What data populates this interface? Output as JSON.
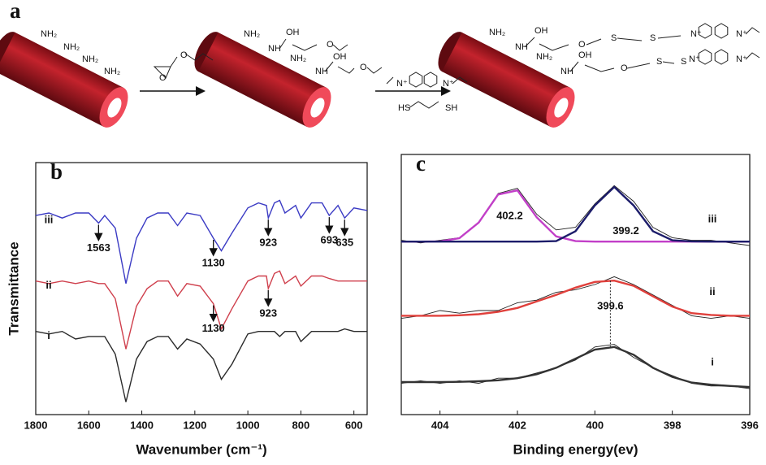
{
  "scheme": {
    "label": "a",
    "texts": [
      "NH₂",
      "NH₂",
      "NH₂",
      "NH₂",
      "O",
      "O",
      "NH₂",
      "NH",
      "OH",
      "O",
      "NH₂",
      "NH",
      "OH",
      "O",
      "N⁺",
      "N⁺",
      "HS",
      "SH",
      "NH₂",
      "NH",
      "OH",
      "O",
      "S",
      "S",
      "N⁺",
      "N⁺",
      "NH₂",
      "NH",
      "OH",
      "O",
      "S",
      "S",
      "N⁺",
      "N⁺"
    ]
  },
  "chart_data": [
    {
      "type": "line",
      "panel_label": "b",
      "x_label": "Wavenumber (cm⁻¹)",
      "y_label": "Transmittance",
      "xlim": [
        1800,
        550
      ],
      "xticks": [
        1800,
        1600,
        1400,
        1200,
        1000,
        800,
        600
      ],
      "ylim": [
        0,
        100
      ],
      "x": [
        1800,
        1750,
        1700,
        1650,
        1600,
        1563,
        1540,
        1500,
        1460,
        1420,
        1380,
        1340,
        1300,
        1265,
        1230,
        1180,
        1130,
        1100,
        1060,
        1000,
        960,
        930,
        923,
        900,
        880,
        860,
        820,
        800,
        760,
        720,
        693,
        660,
        635,
        600,
        550
      ],
      "series": [
        {
          "name": "iii",
          "color": "#3b3bc4",
          "values": [
            79,
            80,
            78,
            80,
            80,
            76,
            79,
            74,
            52,
            70,
            78,
            80,
            80,
            75,
            80,
            79,
            70,
            65,
            72,
            82,
            84,
            83,
            78,
            84,
            85,
            80,
            83,
            78,
            84,
            84,
            79,
            83,
            78,
            82,
            81
          ],
          "peaks": [
            1563,
            1130,
            923,
            693,
            635
          ]
        },
        {
          "name": "ii",
          "color": "#cf3f4c",
          "values": [
            53,
            52,
            53,
            52,
            53,
            52,
            52,
            46,
            26,
            43,
            50,
            53,
            53,
            47,
            52,
            51,
            44,
            34,
            42,
            53,
            55,
            55,
            50,
            56,
            57,
            52,
            55,
            51,
            55,
            55,
            54,
            53,
            53,
            53,
            53
          ],
          "peaks": [
            1130,
            923
          ]
        },
        {
          "name": "i",
          "color": "#2a2a2a",
          "values": [
            33,
            32,
            33,
            30,
            31,
            31,
            31,
            24,
            5,
            22,
            29,
            31,
            31,
            26,
            30,
            28,
            22,
            14,
            20,
            32,
            33,
            33,
            33,
            33,
            31,
            33,
            33,
            29,
            33,
            33,
            33,
            33,
            34,
            33,
            33
          ],
          "peaks": []
        }
      ]
    },
    {
      "type": "line",
      "panel_label": "c",
      "x_label": "Binding energy(ev)",
      "xlim": [
        405,
        396
      ],
      "xticks": [
        404,
        402,
        400,
        398,
        396
      ],
      "ylim": [
        0,
        100
      ],
      "x": [
        405,
        404.5,
        404,
        403.5,
        403,
        402.5,
        402,
        401.5,
        401,
        400.5,
        400,
        399.5,
        399,
        398.5,
        398,
        397.5,
        397,
        396.5,
        396
      ],
      "series": [
        {
          "name": "iii",
          "color": "#222222",
          "values": [
            67,
            66,
            67,
            68,
            74,
            85,
            87,
            77,
            71,
            72,
            81,
            88,
            82,
            72,
            68,
            67,
            67,
            66,
            65
          ],
          "fits": [
            {
              "color": "#c23fc8",
              "values": [
                66.5,
                66.5,
                66.6,
                67.8,
                73.8,
                84.6,
                86.2,
                75.8,
                68.5,
                66.7,
                66.5,
                66.5,
                66.5,
                66.5,
                66.5,
                66.5,
                66.5,
                66.5,
                66.5
              ]
            },
            {
              "color": "#1c1c6a",
              "values": [
                66.5,
                66.5,
                66.5,
                66.5,
                66.5,
                66.5,
                66.5,
                66.5,
                66.7,
                70.5,
                80.4,
                87.5,
                80.4,
                70.5,
                67,
                66.6,
                66.5,
                66.5,
                66.5
              ]
            }
          ],
          "peaks": [
            402.2,
            399.2
          ]
        },
        {
          "name": "ii",
          "color": "#222222",
          "values": [
            37,
            38,
            40,
            39,
            40,
            40,
            43,
            44,
            47,
            48,
            50,
            53,
            50,
            46,
            42,
            38,
            37,
            38,
            37
          ],
          "fits": [
            {
              "color": "#e0403c",
              "values": [
                38,
                38,
                38,
                38.2,
                38.6,
                39.5,
                41,
                43.5,
                46,
                48.8,
                51,
                51.5,
                49.5,
                45.5,
                41.5,
                39,
                38.3,
                38,
                38
              ]
            }
          ],
          "peaks": [
            399.6
          ]
        },
        {
          "name": "i",
          "color": "#222222",
          "values": [
            12,
            13,
            12,
            13,
            12,
            14,
            14,
            16,
            18,
            21,
            26,
            27,
            22,
            18,
            15,
            12,
            11,
            11,
            10
          ],
          "fits": [
            {
              "color": "#333333",
              "values": [
                12.5,
                12.5,
                12.5,
                12.6,
                12.8,
                13.2,
                14,
                15.5,
                18,
                21.5,
                25,
                26,
                23,
                18,
                14.5,
                12.3,
                11.5,
                11,
                10.6
              ]
            }
          ],
          "peaks": []
        }
      ]
    }
  ]
}
